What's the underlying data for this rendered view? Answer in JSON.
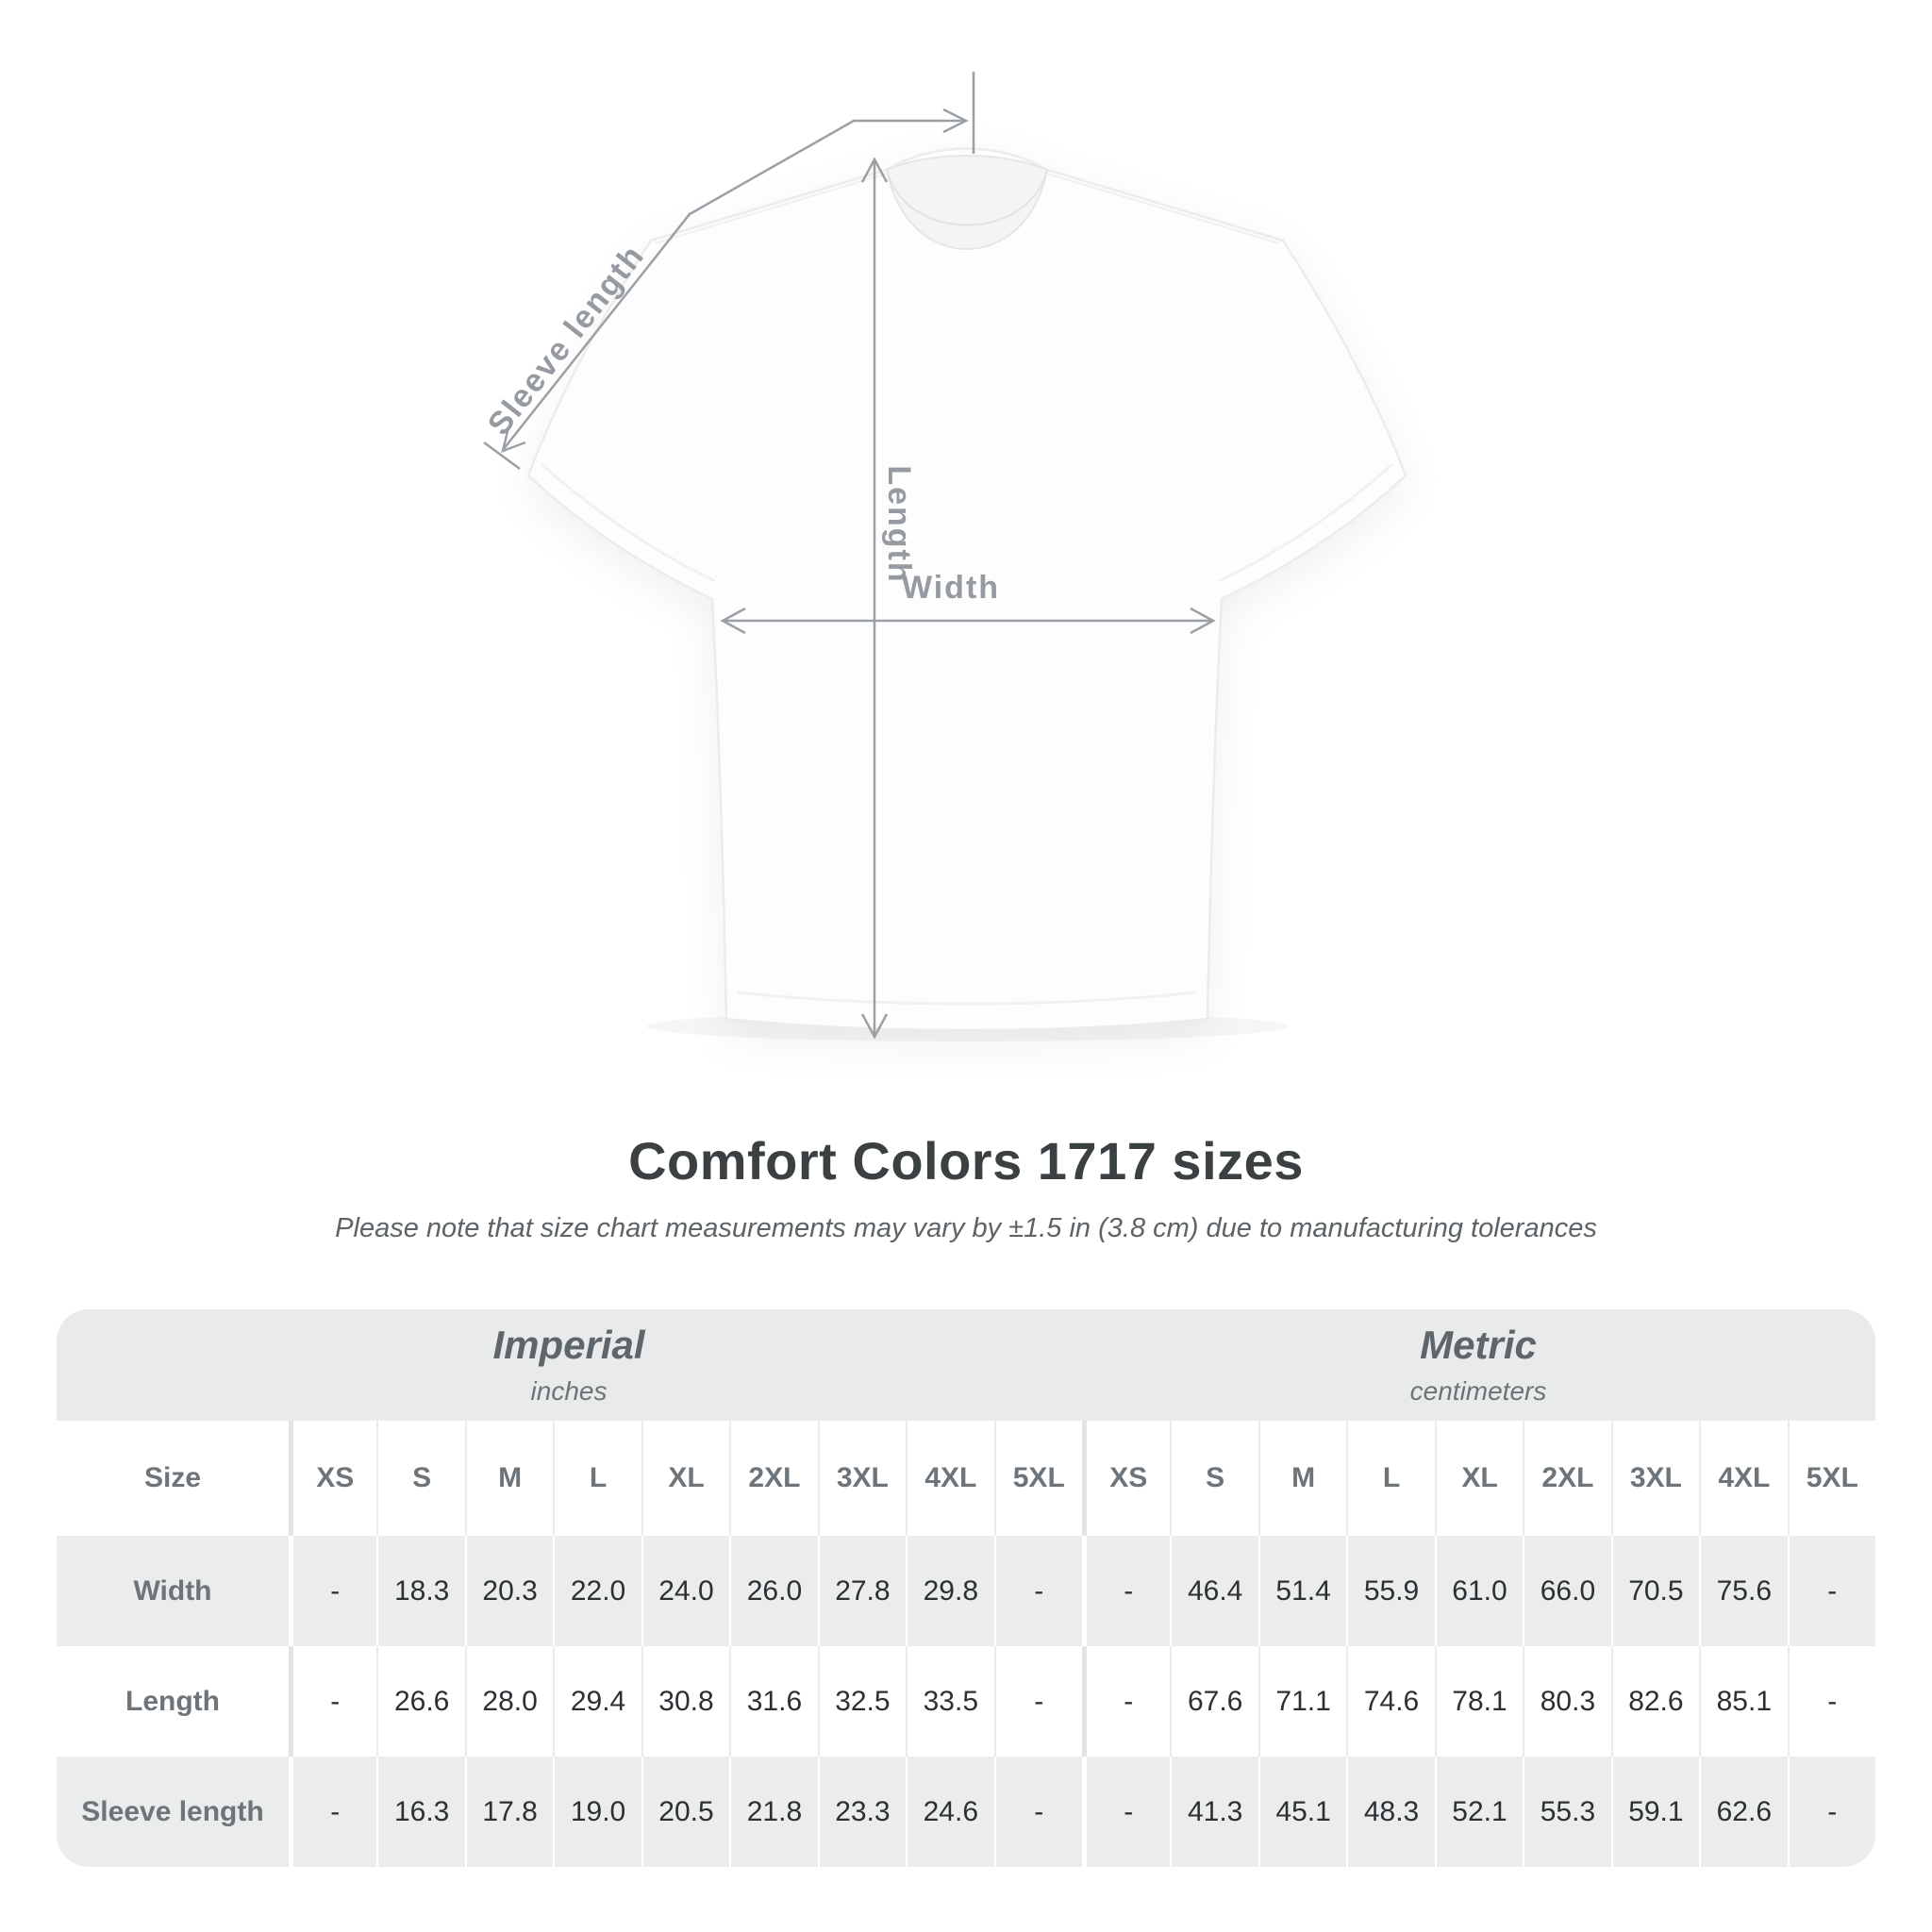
{
  "diagram": {
    "sleeve_length_label": "Sleeve length",
    "length_label": "Length",
    "width_label": "Width"
  },
  "chart_data": {
    "type": "table",
    "title": "Comfort Colors 1717 sizes",
    "subtitle": "Please note that size chart measurements may vary by ±1.5 in (3.8 cm) due to manufacturing tolerances",
    "sections": [
      {
        "name": "Imperial",
        "unit": "inches"
      },
      {
        "name": "Metric",
        "unit": "centimeters"
      }
    ],
    "row_header": "Size",
    "columns": [
      "XS",
      "S",
      "M",
      "L",
      "XL",
      "2XL",
      "3XL",
      "4XL",
      "5XL",
      "XS",
      "S",
      "M",
      "L",
      "XL",
      "2XL",
      "3XL",
      "4XL",
      "5XL"
    ],
    "rows": [
      {
        "label": "Width",
        "values": [
          "-",
          "18.3",
          "20.3",
          "22.0",
          "24.0",
          "26.0",
          "27.8",
          "29.8",
          "-",
          "-",
          "46.4",
          "51.4",
          "55.9",
          "61.0",
          "66.0",
          "70.5",
          "75.6",
          "-"
        ]
      },
      {
        "label": "Length",
        "values": [
          "-",
          "26.6",
          "28.0",
          "29.4",
          "30.8",
          "31.6",
          "32.5",
          "33.5",
          "-",
          "-",
          "67.6",
          "71.1",
          "74.6",
          "78.1",
          "80.3",
          "82.6",
          "85.1",
          "-"
        ]
      },
      {
        "label": "Sleeve length",
        "values": [
          "-",
          "16.3",
          "17.8",
          "19.0",
          "20.5",
          "21.8",
          "23.3",
          "24.6",
          "-",
          "-",
          "41.3",
          "45.1",
          "48.3",
          "52.1",
          "55.3",
          "59.1",
          "62.6",
          "-"
        ]
      }
    ]
  },
  "colors": {
    "band_gray": "#e9eaea",
    "stripe_gray": "#ebecec",
    "annotation_gray": "#9aa0a6",
    "number_text": "#2c3034",
    "label_text": "#6d757a",
    "heading_text": "#3b4043"
  }
}
